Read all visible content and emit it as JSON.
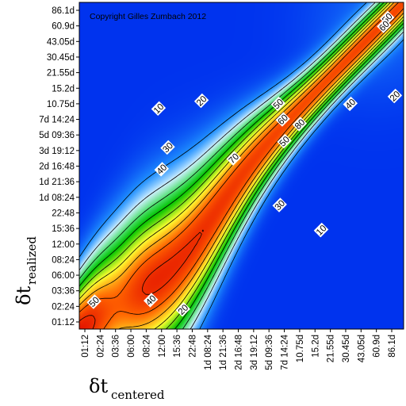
{
  "chart_data": {
    "type": "heatmap",
    "title": "",
    "copyright": "Copyright Gilles Zumbach 2012",
    "xlabel": {
      "symbol": "δt",
      "subscript": "centered"
    },
    "ylabel": {
      "symbol": "δt",
      "subscript": "realized"
    },
    "x_ticks": [
      "01:12",
      "02:24",
      "03:36",
      "06:00",
      "08:24",
      "12:00",
      "15:36",
      "22:48",
      "1d 08:24",
      "1d 21:36",
      "2d 16:48",
      "3d 19:12",
      "5d 09:36",
      "7d 14:24",
      "10.75d",
      "15.2d",
      "21.55d",
      "30.45d",
      "43.05d",
      "60.9d",
      "86.1d"
    ],
    "y_ticks": [
      "01:12",
      "02:24",
      "03:36",
      "06:00",
      "08:24",
      "12:00",
      "15:36",
      "22:48",
      "1d 08:24",
      "1d 21:36",
      "2d 16:48",
      "3d 19:12",
      "5d 09:36",
      "7d 14:24",
      "10.75d",
      "15.2d",
      "21.55d",
      "30.45d",
      "43.05d",
      "60.9d",
      "86.1d"
    ],
    "value_range": [
      0,
      100
    ],
    "colormap": [
      "#0033ee",
      "#1f8fff",
      "#cfefff",
      "#4fe070",
      "#00c400",
      "#ffff30",
      "#ff6000",
      "#dd0000"
    ],
    "contour_levels": [
      10,
      20,
      30,
      40,
      50,
      60,
      70,
      80,
      90
    ],
    "contour_labels": [
      {
        "text": "10",
        "x": 4.8,
        "y": 13.7
      },
      {
        "text": "20",
        "x": 7.6,
        "y": 14.2
      },
      {
        "text": "10",
        "x": 15.4,
        "y": 5.9
      },
      {
        "text": "20",
        "x": 20.2,
        "y": 14.5
      },
      {
        "text": "30",
        "x": 5.4,
        "y": 11.2
      },
      {
        "text": "40",
        "x": 5.0,
        "y": 9.8
      },
      {
        "text": "50",
        "x": 12.6,
        "y": 14.0
      },
      {
        "text": "60",
        "x": 12.9,
        "y": 13.0
      },
      {
        "text": "70",
        "x": 9.7,
        "y": 10.5
      },
      {
        "text": "80",
        "x": 14.0,
        "y": 12.7
      },
      {
        "text": "50",
        "x": 13.0,
        "y": 11.6
      },
      {
        "text": "40",
        "x": 17.3,
        "y": 14.0
      },
      {
        "text": "30",
        "x": 12.7,
        "y": 7.5
      },
      {
        "text": "10",
        "x": 15.4,
        "y": 5.9
      },
      {
        "text": "50",
        "x": 0.6,
        "y": 1.3
      },
      {
        "text": "40",
        "x": 4.3,
        "y": 1.4
      },
      {
        "text": "20",
        "x": 6.4,
        "y": 0.8
      },
      {
        "text": "50",
        "x": 19.7,
        "y": 19.5
      },
      {
        "text": "60",
        "x": 19.5,
        "y": 19.0
      }
    ]
  }
}
